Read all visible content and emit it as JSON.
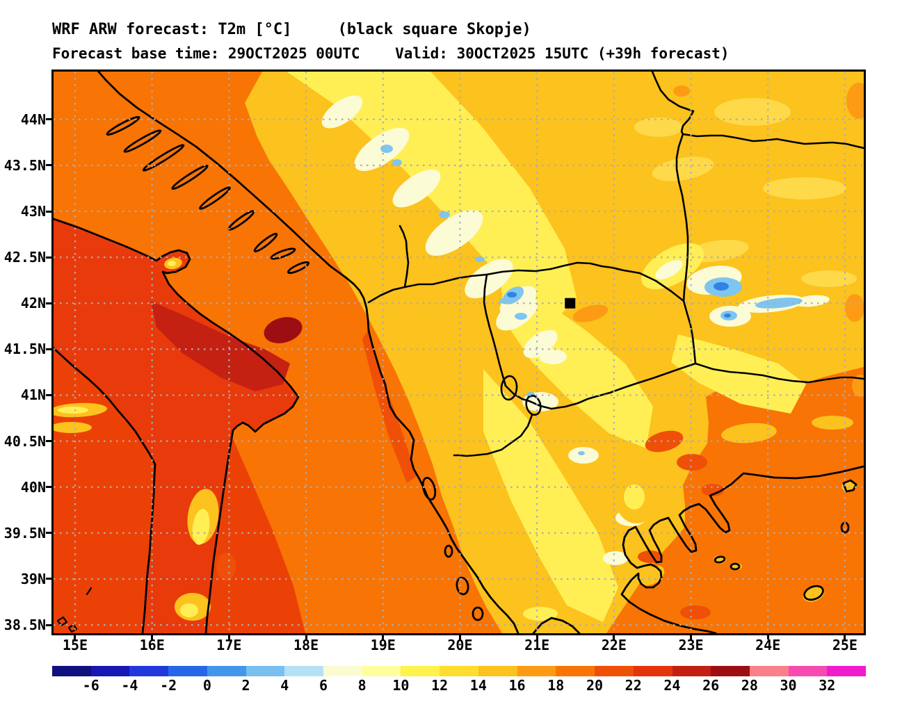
{
  "title": {
    "line1": "WRF ARW forecast: T2m [°C]     (black square Skopje)",
    "line2": "Forecast base time: 29OCT2025 00UTC    Valid: 30OCT2025 15UTC (+39h forecast)"
  },
  "chart_data": {
    "type": "heatmap",
    "subtype": "filled-contour temperature map",
    "title": "WRF ARW forecast: T2m [°C] (black square Skopje)",
    "subtitle": "Forecast base time: 29OCT2025 00UTC  Valid: 30OCT2025 15UTC (+39h forecast)",
    "model": "WRF ARW",
    "variable": "T2m",
    "units": "°C",
    "forecast_base_time": "29OCT2025 00UTC",
    "valid_time": "30OCT2025 15UTC",
    "lead_time": "+39h forecast",
    "marker": {
      "label": "Skopje",
      "symbol": "black square",
      "lon_e": 21.43,
      "lat_n": 42.0
    },
    "x_axis": {
      "ticks": [
        "15E",
        "16E",
        "17E",
        "18E",
        "19E",
        "20E",
        "21E",
        "22E",
        "23E",
        "24E",
        "25E"
      ],
      "lon_left_e": 14.72,
      "lon_right_e": 25.245
    },
    "y_axis": {
      "ticks": [
        "44N",
        "43.5N",
        "43N",
        "42.5N",
        "42N",
        "41.5N",
        "41N",
        "40.5N",
        "40N",
        "39.5N",
        "39N",
        "38.5N"
      ],
      "lat_top_n": 44.52,
      "lat_bottom_n": 38.41
    },
    "grid": true,
    "grid_style": "dotted gray at every labeled tick",
    "colorbar": {
      "orientation": "horizontal",
      "tick_labels": [
        "-6",
        "-4",
        "-2",
        "0",
        "2",
        "4",
        "6",
        "8",
        "10",
        "12",
        "14",
        "16",
        "18",
        "20",
        "22",
        "24",
        "26",
        "28",
        "30",
        "32"
      ],
      "segment_colors": [
        "#10107e",
        "#1617b4",
        "#2139dc",
        "#2766e8",
        "#4397ea",
        "#77c0ef",
        "#b5e1f7",
        "#fbfbd2",
        "#fefe9d",
        "#fff24d",
        "#ffdd30",
        "#fcc21d",
        "#fd9b15",
        "#f97604",
        "#ef4f06",
        "#e3340c",
        "#c21f12",
        "#9c0e12",
        "#fa7f88",
        "#f64bb1",
        "#ee1ccc"
      ],
      "segment_meaning_c": [
        "<-6",
        "-6..-4",
        "-4..-2",
        "-2..0",
        "0..2",
        "2..4",
        "4..6",
        "6..8",
        "8..10",
        "10..12",
        "12..14",
        "14..16",
        "16..18",
        "18..20",
        "20..22",
        "22..24",
        "24..26",
        "26..28",
        "28..30",
        "30..32",
        ">32"
      ]
    },
    "region_values_c": {
      "adriatic_sea": "18-20",
      "ionian_tyrrhenian_sea": "20-22",
      "aegean_sea": "18-20",
      "italy_puglia_interior": "20-26",
      "dinaric_alps_bosnia": "6-14",
      "mountain_cold_spots_balkans": "0-6 (light blue patches)",
      "ne_lowlands_serbia_romania_bulgaria": "14-16",
      "sw_bulgaria_mountains": "0-8",
      "skopje_surroundings": "12-16",
      "albania_coastal_plain": "18-22",
      "pindus_epirus_mountains": "8-14",
      "thessaly_greece": "16-22"
    }
  },
  "map": {
    "projection": "lat-lon",
    "features": [
      "coastlines",
      "country-borders",
      "lakes-ohrid-prespa",
      "dalmatian-islands",
      "aegean-islands"
    ]
  }
}
